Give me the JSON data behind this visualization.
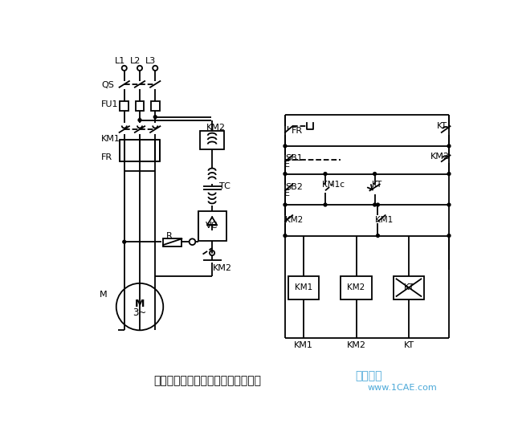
{
  "title": "以时间原则控制的单向能耗制动线路",
  "watermark": "仿真在线",
  "website": "www.1CAE.com",
  "background_color": "#ffffff",
  "line_color": "#000000",
  "watermark_color": "#4aa8d8",
  "title_fontsize": 10,
  "website_fontsize": 8,
  "watermark_fontsize": 10
}
